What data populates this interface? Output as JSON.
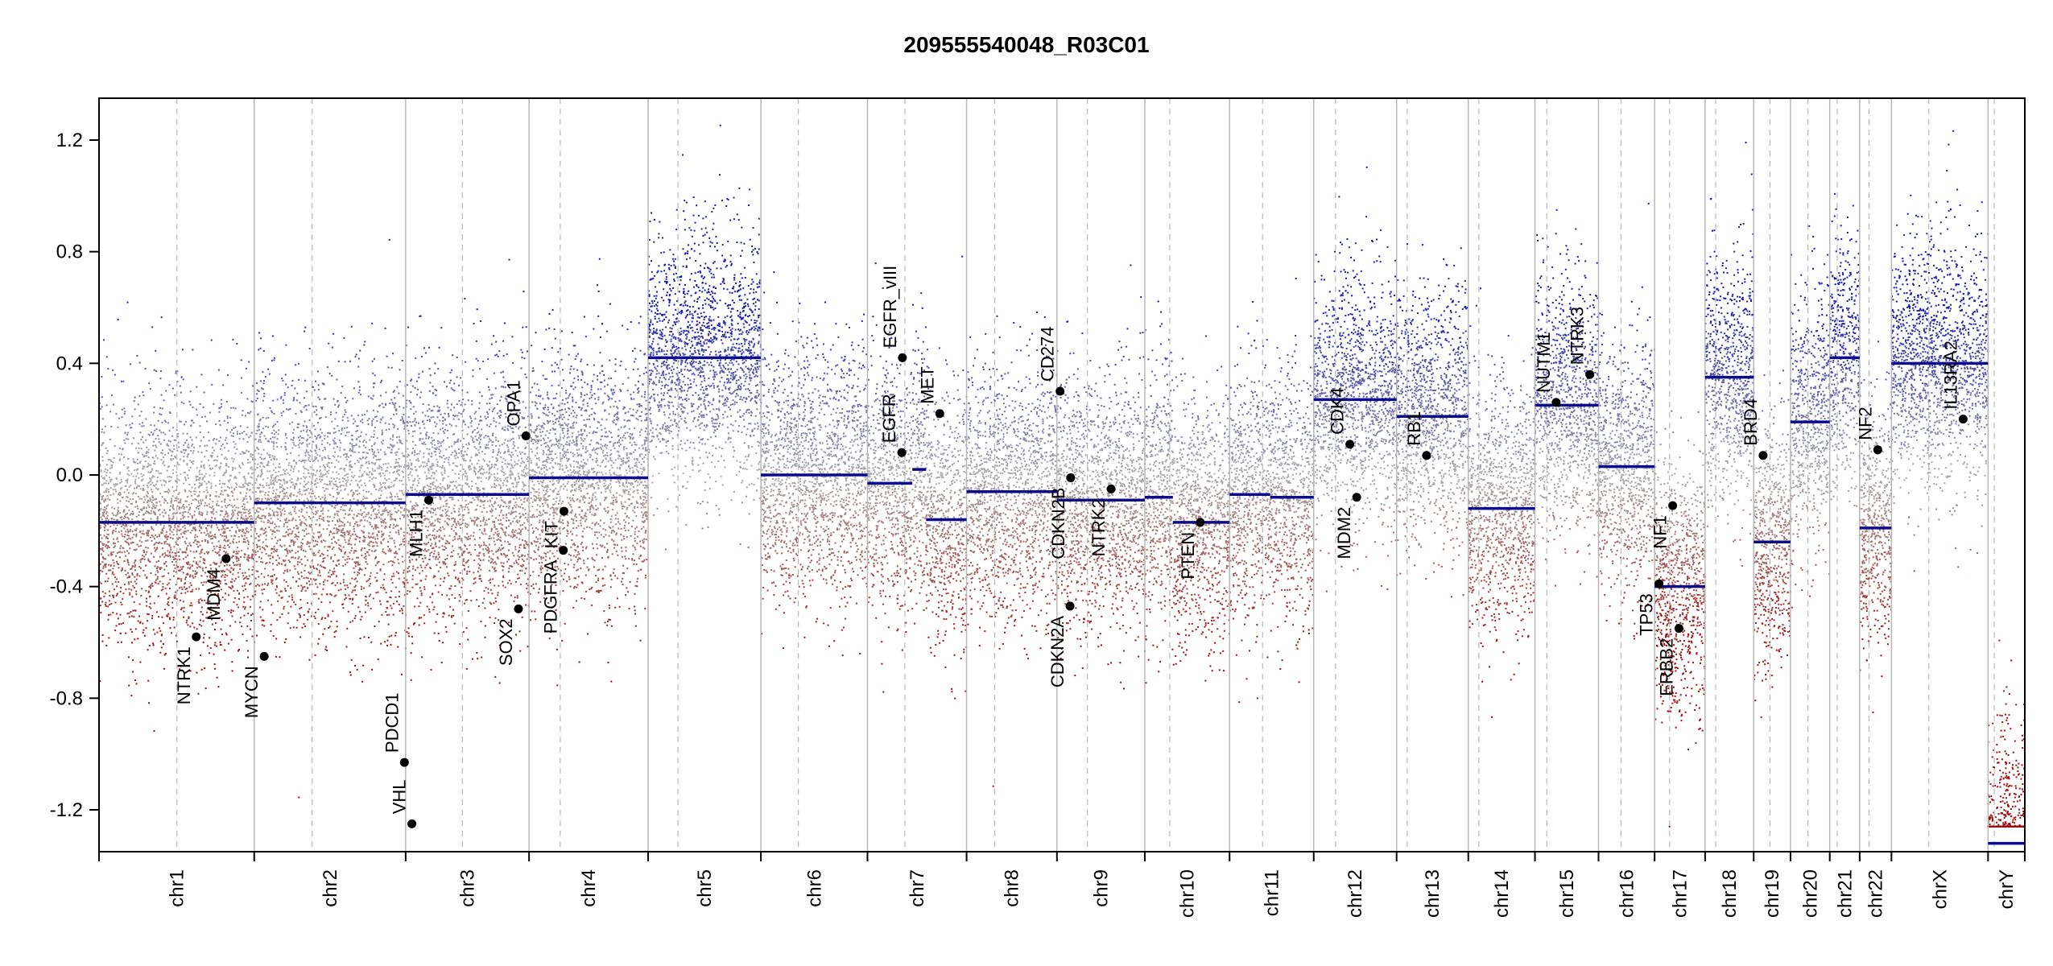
{
  "chart_data": {
    "type": "scatter",
    "title": "209555540048_R03C01",
    "xlabel": "",
    "ylabel": "",
    "ylim": [
      -1.35,
      1.35
    ],
    "yticks": [
      -1.2,
      -0.8,
      -0.4,
      0.0,
      0.4,
      0.8,
      1.2
    ],
    "ytick_labels": [
      "-1.2",
      "-0.8",
      "-0.4",
      "0.0",
      "0.4",
      "0.8",
      "1.2"
    ],
    "grid": false,
    "colors": {
      "gain": "#1a1aa8",
      "loss": "#9b0f0f",
      "segment": "#0a0a8c",
      "neutral": "#aaaaaa",
      "gene_point": "#000000"
    },
    "chromosomes": [
      {
        "name": "chr1",
        "len": 249,
        "cen": 125
      },
      {
        "name": "chr2",
        "len": 243,
        "cen": 93
      },
      {
        "name": "chr3",
        "len": 198,
        "cen": 91
      },
      {
        "name": "chr4",
        "len": 191,
        "cen": 50
      },
      {
        "name": "chr5",
        "len": 181,
        "cen": 48
      },
      {
        "name": "chr6",
        "len": 171,
        "cen": 60
      },
      {
        "name": "chr7",
        "len": 159,
        "cen": 60
      },
      {
        "name": "chr8",
        "len": 145,
        "cen": 45
      },
      {
        "name": "chr9",
        "len": 141,
        "cen": 49
      },
      {
        "name": "chr10",
        "len": 136,
        "cen": 40
      },
      {
        "name": "chr11",
        "len": 135,
        "cen": 53
      },
      {
        "name": "chr12",
        "len": 133,
        "cen": 35
      },
      {
        "name": "chr13",
        "len": 115,
        "cen": 17
      },
      {
        "name": "chr14",
        "len": 107,
        "cen": 17
      },
      {
        "name": "chr15",
        "len": 102,
        "cen": 19
      },
      {
        "name": "chr16",
        "len": 90,
        "cen": 36
      },
      {
        "name": "chr17",
        "len": 81,
        "cen": 24
      },
      {
        "name": "chr18",
        "len": 78,
        "cen": 17
      },
      {
        "name": "chr19",
        "len": 59,
        "cen": 26
      },
      {
        "name": "chr20",
        "len": 63,
        "cen": 28
      },
      {
        "name": "chr21",
        "len": 48,
        "cen": 12
      },
      {
        "name": "chr22",
        "len": 51,
        "cen": 15
      },
      {
        "name": "chrX",
        "len": 155,
        "cen": 60
      },
      {
        "name": "chrY",
        "len": 59,
        "cen": 10
      }
    ],
    "segments": [
      {
        "chr": "chr1",
        "start": 0,
        "end": 249,
        "value": -0.17
      },
      {
        "chr": "chr2",
        "start": 0,
        "end": 243,
        "value": -0.1
      },
      {
        "chr": "chr3",
        "start": 0,
        "end": 198,
        "value": -0.07
      },
      {
        "chr": "chr4",
        "start": 0,
        "end": 191,
        "value": -0.01
      },
      {
        "chr": "chr5",
        "start": 0,
        "end": 181,
        "value": 0.42
      },
      {
        "chr": "chr6",
        "start": 0,
        "end": 171,
        "value": 0.0
      },
      {
        "chr": "chr7",
        "start": 0,
        "end": 72,
        "value": -0.03
      },
      {
        "chr": "chr7",
        "start": 72,
        "end": 94,
        "value": 0.02
      },
      {
        "chr": "chr7",
        "start": 94,
        "end": 159,
        "value": -0.16
      },
      {
        "chr": "chr8",
        "start": 0,
        "end": 145,
        "value": -0.06
      },
      {
        "chr": "chr9",
        "start": 0,
        "end": 141,
        "value": -0.09
      },
      {
        "chr": "chr10",
        "start": 0,
        "end": 45,
        "value": -0.08
      },
      {
        "chr": "chr10",
        "start": 45,
        "end": 136,
        "value": -0.17
      },
      {
        "chr": "chr11",
        "start": 0,
        "end": 65,
        "value": -0.07
      },
      {
        "chr": "chr11",
        "start": 65,
        "end": 135,
        "value": -0.08
      },
      {
        "chr": "chr12",
        "start": 0,
        "end": 133,
        "value": 0.27
      },
      {
        "chr": "chr13",
        "start": 0,
        "end": 115,
        "value": 0.21
      },
      {
        "chr": "chr14",
        "start": 0,
        "end": 107,
        "value": -0.12
      },
      {
        "chr": "chr15",
        "start": 0,
        "end": 102,
        "value": 0.25
      },
      {
        "chr": "chr16",
        "start": 0,
        "end": 90,
        "value": 0.03
      },
      {
        "chr": "chr17",
        "start": 0,
        "end": 81,
        "value": -0.4
      },
      {
        "chr": "chr18",
        "start": 0,
        "end": 78,
        "value": 0.35
      },
      {
        "chr": "chr19",
        "start": 0,
        "end": 59,
        "value": -0.24
      },
      {
        "chr": "chr20",
        "start": 0,
        "end": 63,
        "value": 0.19
      },
      {
        "chr": "chr21",
        "start": 0,
        "end": 48,
        "value": 0.42
      },
      {
        "chr": "chr22",
        "start": 0,
        "end": 51,
        "value": -0.19
      },
      {
        "chr": "chrX",
        "start": 0,
        "end": 155,
        "value": 0.4
      },
      {
        "chr": "chrY",
        "start": 0,
        "end": 59,
        "value": -1.32
      }
    ],
    "genes": [
      {
        "name": "NTRK1",
        "chr": "chr1",
        "pos": 156,
        "value": -0.58,
        "side": "below"
      },
      {
        "name": "MDM4",
        "chr": "chr1",
        "pos": 204,
        "value": -0.3,
        "side": "below"
      },
      {
        "name": "MYCN",
        "chr": "chr2",
        "pos": 16,
        "value": -0.65,
        "side": "below"
      },
      {
        "name": "VHL",
        "chr": "chr3",
        "pos": 10,
        "value": -1.25,
        "side": "above"
      },
      {
        "name": "PDCD1",
        "chr": "chr2",
        "pos": 241,
        "value": -1.03,
        "side": "above"
      },
      {
        "name": "MLH1",
        "chr": "chr3",
        "pos": 37,
        "value": -0.09,
        "side": "below"
      },
      {
        "name": "SOX2",
        "chr": "chr3",
        "pos": 181,
        "value": -0.48,
        "side": "below"
      },
      {
        "name": "OPA1",
        "chr": "chr3",
        "pos": 193,
        "value": 0.14,
        "side": "above"
      },
      {
        "name": "PDGFRA",
        "chr": "chr4",
        "pos": 55,
        "value": -0.27,
        "side": "below"
      },
      {
        "name": "KIT",
        "chr": "chr4",
        "pos": 56,
        "value": -0.13,
        "side": "below"
      },
      {
        "name": "EGFR",
        "chr": "chr7",
        "pos": 55,
        "value": 0.08,
        "side": "above"
      },
      {
        "name": "EGFR_vIII",
        "chr": "chr7",
        "pos": 56,
        "value": 0.42,
        "side": "above"
      },
      {
        "name": "MET",
        "chr": "chr7",
        "pos": 116,
        "value": 0.22,
        "side": "above"
      },
      {
        "name": "CD274",
        "chr": "chr9",
        "pos": 5,
        "value": 0.3,
        "side": "above"
      },
      {
        "name": "CDKN2B",
        "chr": "chr9",
        "pos": 22,
        "value": -0.01,
        "side": "below"
      },
      {
        "name": "CDKN2A",
        "chr": "chr9",
        "pos": 21,
        "value": -0.47,
        "side": "below"
      },
      {
        "name": "NTRK2",
        "chr": "chr9",
        "pos": 87,
        "value": -0.05,
        "side": "below"
      },
      {
        "name": "PTEN",
        "chr": "chr10",
        "pos": 89,
        "value": -0.17,
        "side": "below"
      },
      {
        "name": "CDK4",
        "chr": "chr12",
        "pos": 58,
        "value": 0.11,
        "side": "above"
      },
      {
        "name": "MDM2",
        "chr": "chr12",
        "pos": 69,
        "value": -0.08,
        "side": "below"
      },
      {
        "name": "RB1",
        "chr": "chr13",
        "pos": 48,
        "value": 0.07,
        "side": "above"
      },
      {
        "name": "NUTM1",
        "chr": "chr15",
        "pos": 34,
        "value": 0.26,
        "side": "above"
      },
      {
        "name": "NTRK3",
        "chr": "chr15",
        "pos": 88,
        "value": 0.36,
        "side": "above"
      },
      {
        "name": "NF1",
        "chr": "chr17",
        "pos": 29,
        "value": -0.11,
        "side": "below"
      },
      {
        "name": "TP53",
        "chr": "chr17",
        "pos": 7,
        "value": -0.39,
        "side": "below"
      },
      {
        "name": "ERBB2",
        "chr": "chr17",
        "pos": 39,
        "value": -0.55,
        "side": "below"
      },
      {
        "name": "BRD4",
        "chr": "chr19",
        "pos": 15,
        "value": 0.07,
        "side": "above"
      },
      {
        "name": "NF2",
        "chr": "chr22",
        "pos": 29,
        "value": 0.09,
        "side": "above"
      },
      {
        "name": "IL13RA2",
        "chr": "chrX",
        "pos": 115,
        "value": 0.2,
        "side": "above"
      }
    ]
  }
}
